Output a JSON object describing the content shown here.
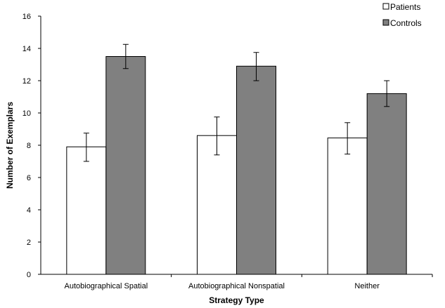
{
  "chart_data": {
    "type": "bar",
    "title": "",
    "xlabel": "Strategy Type",
    "ylabel": "Number of Exemplars",
    "ylim": [
      0,
      16
    ],
    "yticks": [
      0,
      2,
      4,
      6,
      8,
      10,
      12,
      14,
      16
    ],
    "grid": false,
    "legend_position": "top-right",
    "categories": [
      "Autobiographical Spatial",
      "Autobiographical Nonspatial",
      "Neither"
    ],
    "series": [
      {
        "name": "Patients",
        "color": "#ffffff",
        "values": [
          7.9,
          8.6,
          8.45
        ],
        "error_low": [
          7.0,
          7.4,
          7.45
        ],
        "error_high": [
          8.75,
          9.75,
          9.4
        ]
      },
      {
        "name": "Controls",
        "color": "#808080",
        "values": [
          13.5,
          12.9,
          11.2
        ],
        "error_low": [
          12.75,
          12.0,
          10.4
        ],
        "error_high": [
          14.25,
          13.75,
          12.0
        ]
      }
    ]
  }
}
